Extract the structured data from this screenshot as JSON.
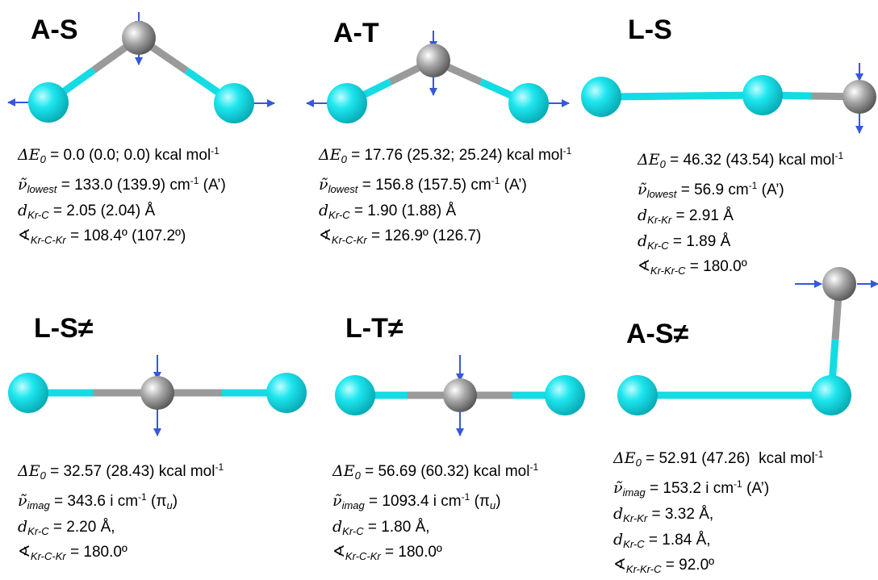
{
  "panels": [
    {
      "label": "A-S",
      "energy": [
        "ΔE",
        "0",
        " = 0.0 (0.0; 0.0) kcal mol",
        "-1"
      ],
      "frequency": [
        "ν̃",
        "lowest",
        " = 133.0 (139.9) cm",
        "-1",
        " (A’)"
      ],
      "distances": [
        [
          "d",
          "Kr-C",
          " = 2.05 (2.04) Å"
        ]
      ],
      "angle": [
        "∢",
        "Kr-C-Kr",
        " = 108.4º (107.2º)"
      ]
    },
    {
      "label": "A-T",
      "energy": [
        "ΔE",
        "0",
        " = 17.76 (25.32; 25.24) kcal mol",
        "-1"
      ],
      "frequency": [
        "ν̃",
        "lowest",
        " = 156.8 (157.5) cm",
        "-1",
        " (A’)"
      ],
      "distances": [
        [
          "d",
          "Kr-C",
          " = 1.90 (1.88) Å"
        ]
      ],
      "angle": [
        "∢",
        "Kr-C-Kr",
        " = 126.9º (126.7)"
      ]
    },
    {
      "label": "L-S",
      "energy": [
        "ΔE",
        "0",
        " = 46.32 (43.54) kcal mol",
        "-1"
      ],
      "frequency": [
        "ν̃",
        "lowest",
        " = 56.9 cm",
        "-1",
        " (A’)"
      ],
      "distances": [
        [
          "d",
          "Kr-Kr",
          " = 2.91 Å"
        ],
        [
          "d",
          "Kr-C",
          " = 1.89 Å"
        ]
      ],
      "angle": [
        "∢",
        "Kr-Kr-C",
        " = 180.0º"
      ]
    },
    {
      "label": "L-S≠",
      "energy": [
        "ΔE",
        "0",
        " = 32.57 (28.43) kcal mol",
        "-1"
      ],
      "frequency": [
        "ν̃",
        "imag",
        " = 343.6 i cm",
        "-1",
        " (π",
        "u",
        ")"
      ],
      "distances": [
        [
          "d",
          "Kr-C",
          " = 2.20 Å,"
        ]
      ],
      "angle": [
        "∢",
        "Kr-C-Kr",
        " = 180.0º"
      ]
    },
    {
      "label": "L-T≠",
      "energy": [
        "ΔE",
        "0",
        " = 56.69 (60.32) kcal mol",
        "-1"
      ],
      "frequency": [
        "ν̃",
        "imag",
        " = 1093.4 i cm",
        "-1",
        " (π",
        "u",
        ")"
      ],
      "distances": [
        [
          "d",
          "Kr-C",
          " = 1.80 Å,"
        ]
      ],
      "angle": [
        "∢",
        "Kr-C-Kr",
        " = 180.0º"
      ]
    },
    {
      "label": "A-S≠",
      "energy": [
        "ΔE",
        "0",
        " = 52.91 (47.26)  kcal mol",
        "-1"
      ],
      "frequency": [
        "ν̃",
        "imag",
        " = 153.2 i cm",
        "-1",
        " (A’)"
      ],
      "distances": [
        [
          "d",
          "Kr-Kr",
          " = 3.32 Å,"
        ],
        [
          "d",
          "Kr-C",
          " = 1.84 Å,"
        ]
      ],
      "angle": [
        "∢",
        "Kr-Kr-C",
        " = 92.0º"
      ]
    }
  ]
}
